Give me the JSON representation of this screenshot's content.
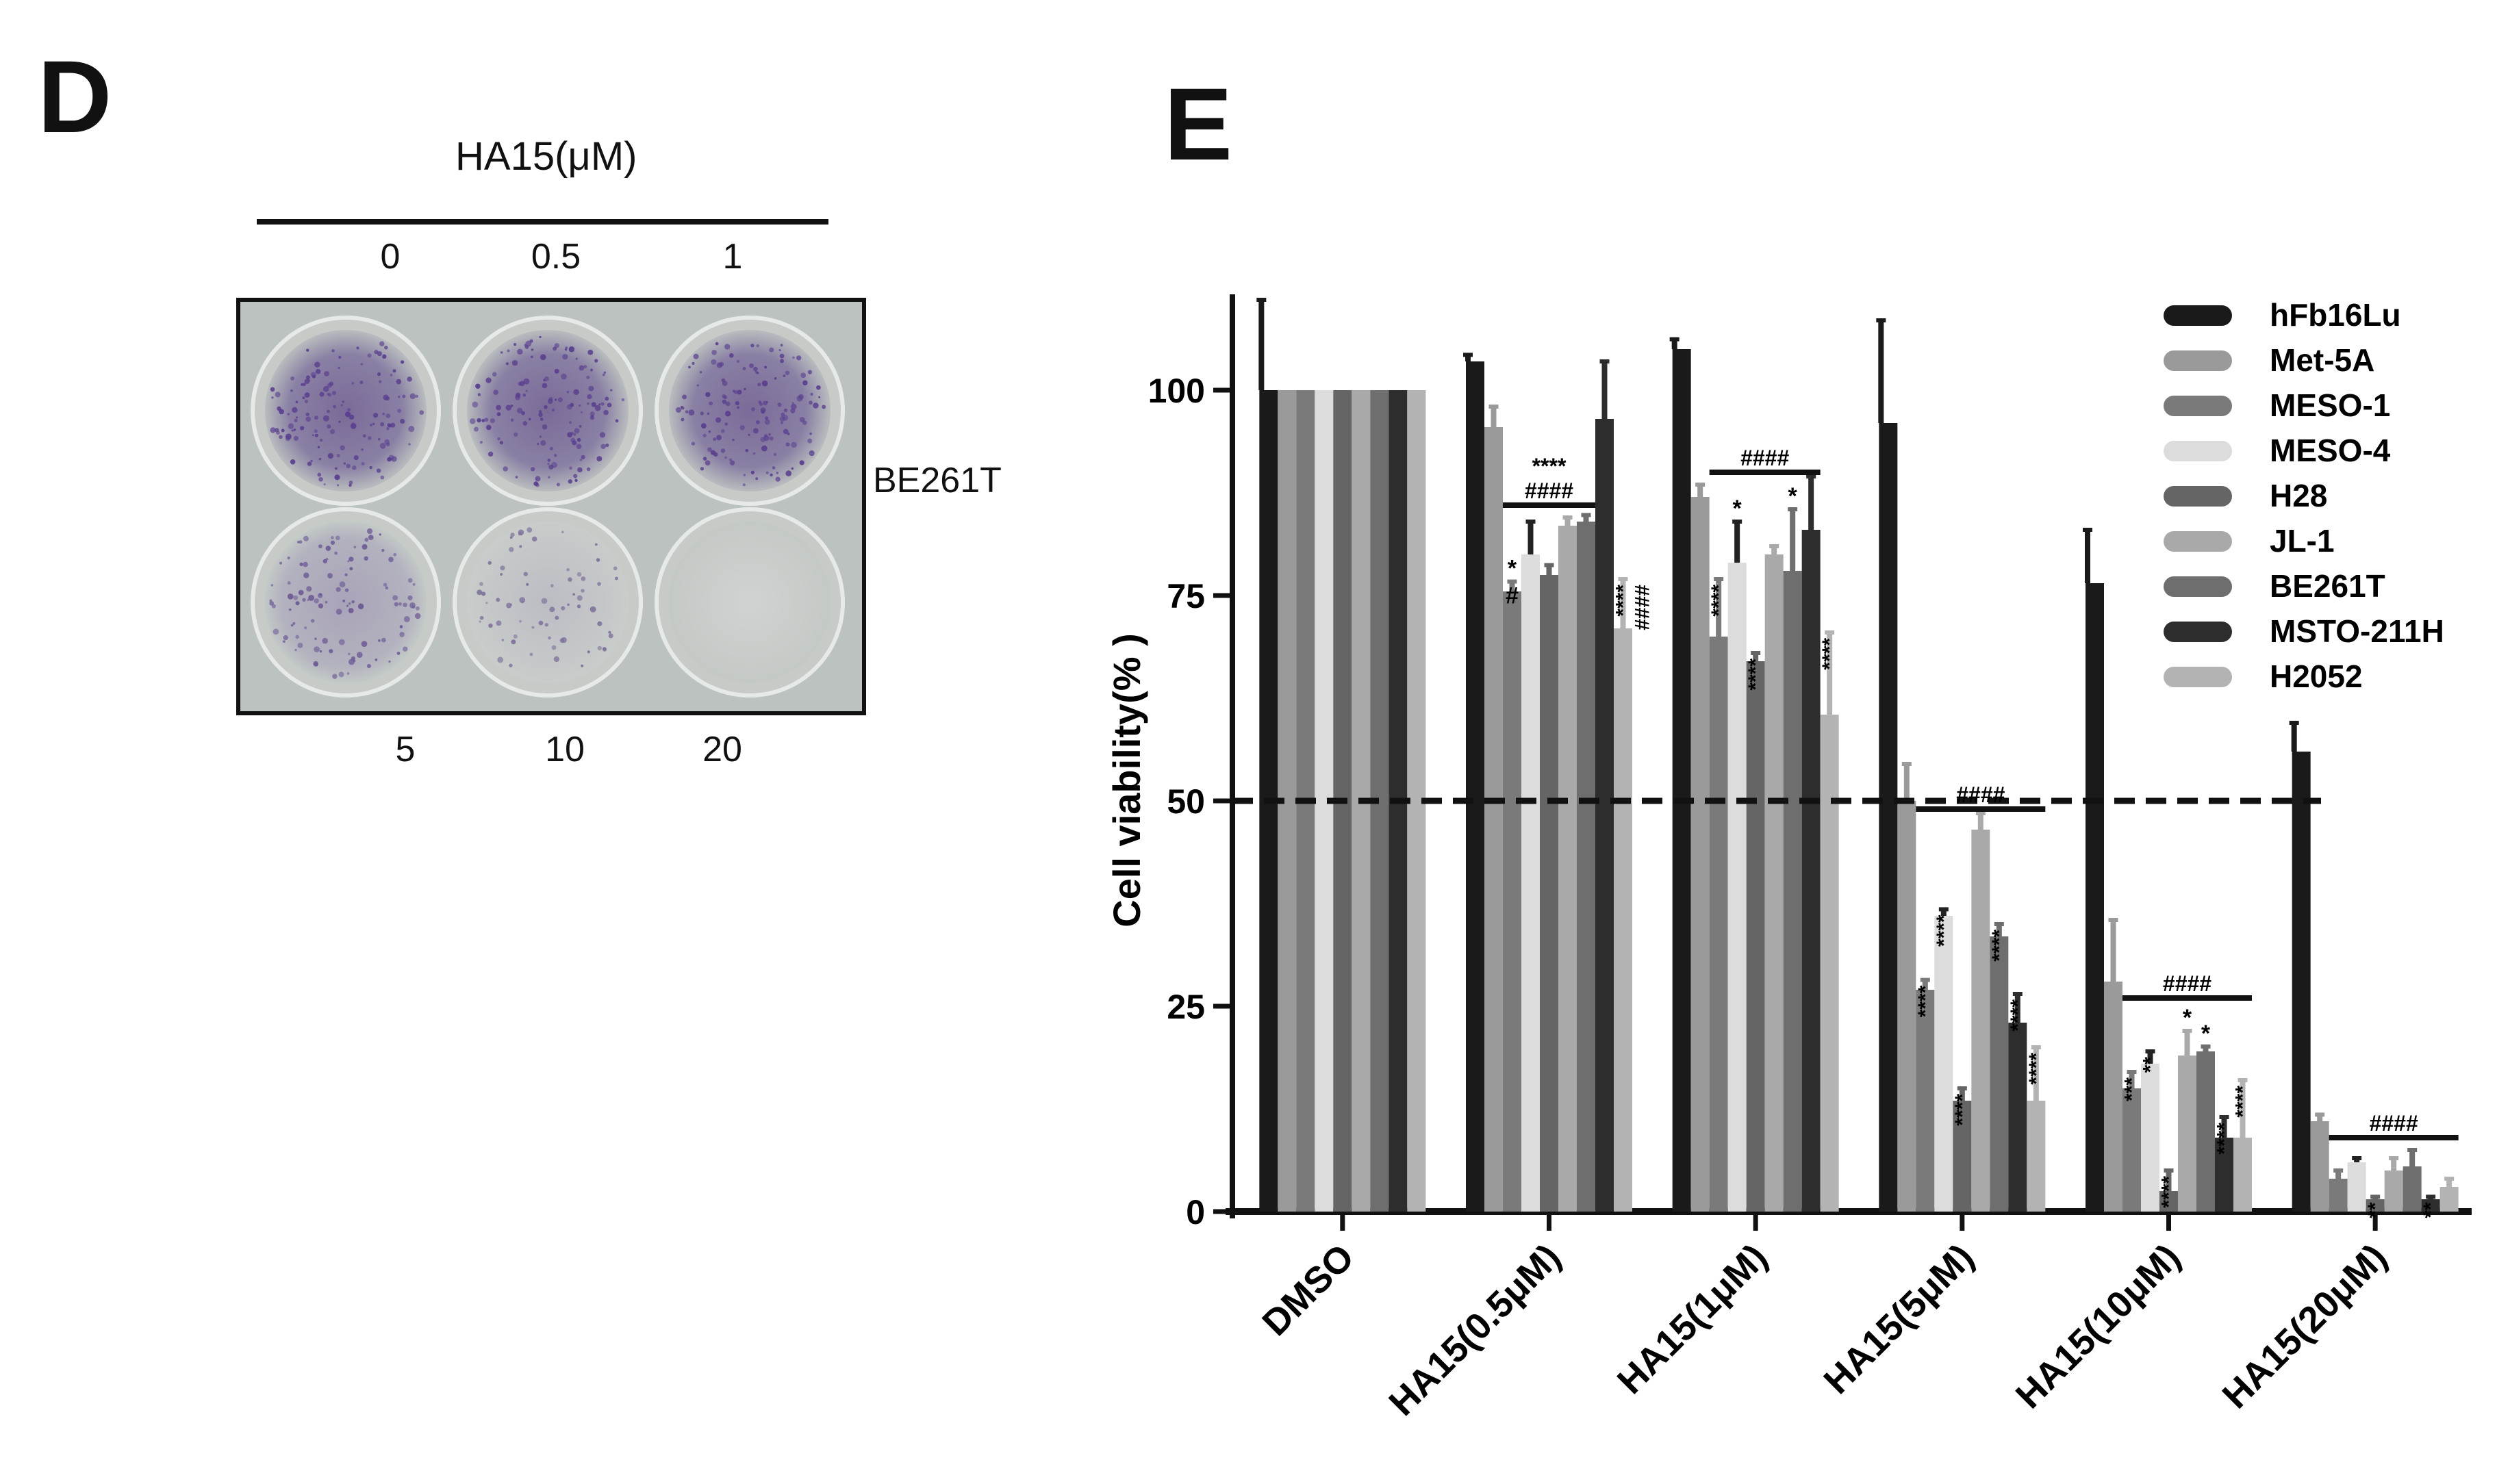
{
  "panel_d": {
    "letter": "D",
    "title": "HA15(μM)",
    "doses_top": [
      "0",
      "0.5",
      "1"
    ],
    "doses_bottom": [
      "5",
      "10",
      "20"
    ],
    "cell_line_label": "BE261T"
  },
  "panel_e": {
    "letter": "E"
  },
  "colors": {
    "hFb16Lu": "#1a1a1a",
    "Met-5A": "#9a9a9a",
    "MESO-1": "#7a7a7a",
    "MESO-4": "#dcdcdc",
    "H28": "#656565",
    "JL-1": "#a9a9a9",
    "BE261T": "#6e6e6e",
    "MSTO-211H": "#2d2d2d",
    "H2052": "#b3b3b3"
  },
  "chart_data": {
    "type": "bar",
    "ylabel": "Cell viability(% )",
    "ylim": [
      0,
      110
    ],
    "yticks": [
      0,
      25,
      50,
      75,
      100
    ],
    "reference_line": 50,
    "legend_position": "top-right",
    "categories": [
      "DMSO",
      "HA15(0.5μM)",
      "HA15(1μM)",
      "HA15(5μM)",
      "HA15(10μM)",
      "HA15(20μM)"
    ],
    "series": [
      {
        "name": "hFb16Lu",
        "values": [
          100,
          103.5,
          105,
          96,
          76.5,
          56
        ],
        "errors": [
          11,
          0.8,
          1.2,
          12.5,
          6.5,
          3.5
        ]
      },
      {
        "name": "Met-5A",
        "values": [
          100,
          95.5,
          87,
          50,
          28,
          11
        ],
        "errors": [
          0,
          2.5,
          1.5,
          4.5,
          7.5,
          0.8
        ]
      },
      {
        "name": "MESO-1",
        "values": [
          100,
          75.5,
          70,
          27,
          15,
          4
        ],
        "errors": [
          0,
          1.2,
          7,
          1.2,
          2,
          1
        ]
      },
      {
        "name": "MESO-4",
        "values": [
          100,
          80,
          79,
          36,
          18,
          6
        ],
        "errors": [
          0,
          4,
          5,
          0.8,
          1.5,
          0.5
        ]
      },
      {
        "name": "H28",
        "values": [
          100,
          77.5,
          67,
          13.5,
          2.5,
          1.5
        ],
        "errors": [
          0,
          1.2,
          1,
          1.5,
          2.5,
          0.3
        ]
      },
      {
        "name": "JL-1",
        "values": [
          100,
          83.5,
          80,
          46.5,
          19,
          5
        ],
        "errors": [
          0,
          1,
          1,
          2,
          3,
          1.5
        ]
      },
      {
        "name": "BE261T",
        "values": [
          100,
          84,
          78,
          33.5,
          19.5,
          5.5
        ],
        "errors": [
          0,
          0.8,
          7.5,
          1.5,
          0.6,
          2
        ]
      },
      {
        "name": "MSTO-211H",
        "values": [
          100,
          96.5,
          83,
          23,
          9,
          1.5
        ],
        "errors": [
          0,
          7,
          6.5,
          3.5,
          2.5,
          0.3
        ]
      },
      {
        "name": "H2052",
        "values": [
          100,
          71,
          60.5,
          13.5,
          9,
          3
        ],
        "errors": [
          0,
          6,
          10,
          6.5,
          7,
          1
        ]
      }
    ],
    "annotations": [
      {
        "group": 1,
        "series_from": 2,
        "series_to": 6,
        "y": 86,
        "lines": [
          "****",
          "####"
        ]
      },
      {
        "group": 2,
        "series_from": 2,
        "series_to": 7,
        "y": 90,
        "lines": [
          "####"
        ]
      },
      {
        "group": 3,
        "series_from": 2,
        "series_to": 8,
        "y": 49,
        "lines": [
          "####"
        ]
      },
      {
        "group": 4,
        "series_from": 2,
        "series_to": 8,
        "y": 26,
        "lines": [
          "####"
        ]
      },
      {
        "group": 5,
        "series_from": 2,
        "series_to": 8,
        "y": 9,
        "lines": [
          "####"
        ]
      }
    ],
    "significance_marks": [
      {
        "group": 1,
        "series": 2,
        "text": "*"
      },
      {
        "group": 1,
        "series": 2,
        "text": "#",
        "low": true
      },
      {
        "group": 1,
        "series": 8,
        "text": "****",
        "rotated": true
      },
      {
        "group": 1,
        "series": 8,
        "text": "####",
        "rotated": true,
        "offset": 1
      },
      {
        "group": 2,
        "series": 2,
        "text": "****",
        "rotated": true
      },
      {
        "group": 2,
        "series": 3,
        "text": "*"
      },
      {
        "group": 2,
        "series": 4,
        "text": "****",
        "rotated": true
      },
      {
        "group": 2,
        "series": 6,
        "text": "*"
      },
      {
        "group": 2,
        "series": 8,
        "text": "****",
        "rotated": true
      },
      {
        "group": 3,
        "series": 2,
        "text": "****",
        "rotated": true
      },
      {
        "group": 3,
        "series": 3,
        "text": "****",
        "rotated": true
      },
      {
        "group": 3,
        "series": 4,
        "text": "****",
        "rotated": true
      },
      {
        "group": 3,
        "series": 6,
        "text": "****",
        "rotated": true
      },
      {
        "group": 3,
        "series": 7,
        "text": "****",
        "rotated": true
      },
      {
        "group": 3,
        "series": 8,
        "text": "****",
        "rotated": true
      },
      {
        "group": 4,
        "series": 2,
        "text": "***",
        "rotated": true
      },
      {
        "group": 4,
        "series": 3,
        "text": "**",
        "rotated": true
      },
      {
        "group": 4,
        "series": 4,
        "text": "****",
        "rotated": true
      },
      {
        "group": 4,
        "series": 5,
        "text": "*"
      },
      {
        "group": 4,
        "series": 6,
        "text": "*"
      },
      {
        "group": 4,
        "series": 7,
        "text": "****",
        "rotated": true
      },
      {
        "group": 4,
        "series": 8,
        "text": "****",
        "rotated": true
      },
      {
        "group": 5,
        "series": 4,
        "text": "**",
        "rotated": true
      },
      {
        "group": 5,
        "series": 7,
        "text": "**",
        "rotated": true
      }
    ]
  }
}
